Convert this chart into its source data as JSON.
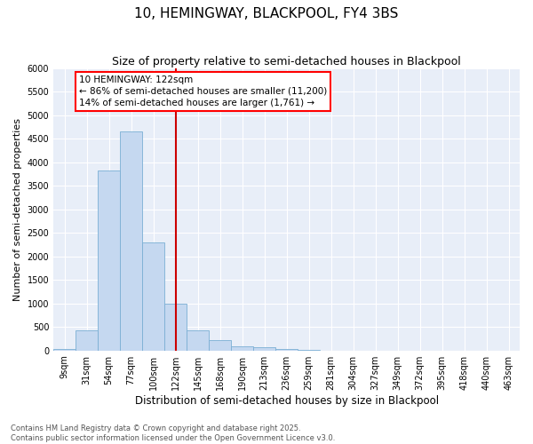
{
  "title": "10, HEMINGWAY, BLACKPOOL, FY4 3BS",
  "subtitle": "Size of property relative to semi-detached houses in Blackpool",
  "xlabel": "Distribution of semi-detached houses by size in Blackpool",
  "ylabel": "Number of semi-detached properties",
  "bar_labels": [
    "9sqm",
    "31sqm",
    "54sqm",
    "77sqm",
    "100sqm",
    "122sqm",
    "145sqm",
    "168sqm",
    "190sqm",
    "213sqm",
    "236sqm",
    "259sqm",
    "281sqm",
    "304sqm",
    "327sqm",
    "349sqm",
    "372sqm",
    "395sqm",
    "418sqm",
    "440sqm",
    "463sqm"
  ],
  "bar_values": [
    30,
    430,
    3820,
    4650,
    2300,
    1000,
    420,
    230,
    90,
    70,
    30,
    5,
    0,
    0,
    0,
    0,
    0,
    0,
    0,
    0,
    0
  ],
  "bar_color": "#c5d8f0",
  "bar_edge_color": "#7bafd4",
  "vline_x_index": 5,
  "vline_color": "#cc0000",
  "annotation_line1": "10 HEMINGWAY: 122sqm",
  "annotation_line2": "← 86% of semi-detached houses are smaller (11,200)",
  "annotation_line3": "14% of semi-detached houses are larger (1,761) →",
  "ylim": [
    0,
    6000
  ],
  "yticks": [
    0,
    500,
    1000,
    1500,
    2000,
    2500,
    3000,
    3500,
    4000,
    4500,
    5000,
    5500,
    6000
  ],
  "background_color": "#e8eef8",
  "grid_color": "#ffffff",
  "footer_line1": "Contains HM Land Registry data © Crown copyright and database right 2025.",
  "footer_line2": "Contains public sector information licensed under the Open Government Licence v3.0.",
  "title_fontsize": 11,
  "subtitle_fontsize": 9,
  "xlabel_fontsize": 8.5,
  "ylabel_fontsize": 8,
  "tick_fontsize": 7,
  "footer_fontsize": 6,
  "annotation_fontsize": 7.5
}
